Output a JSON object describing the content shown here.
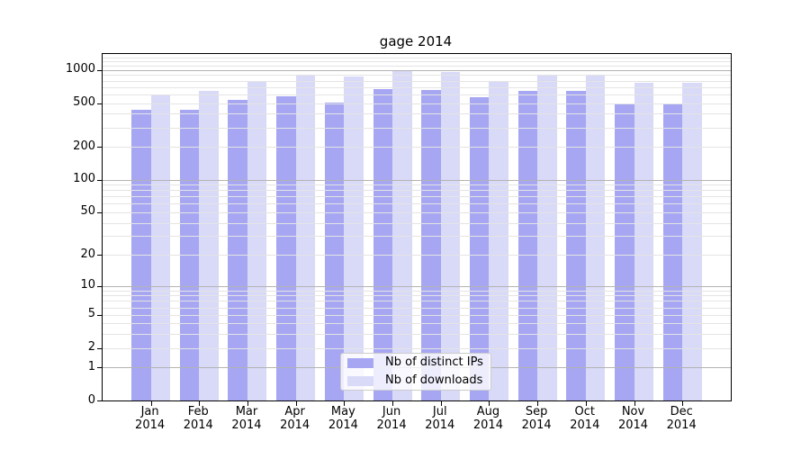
{
  "title": "gage 2014",
  "colors": {
    "distinct_ips_bar": "#a6a6f2",
    "downloads_bar": "#d9d9f8",
    "grid_major": "#b3b3b3",
    "grid_minor": "#e4e4e4",
    "axis_spine": "#000000",
    "legend_border": "#cccccc",
    "text": "#000000"
  },
  "chart_data": {
    "type": "bar",
    "title": "gage 2014",
    "categories": [
      "Jan 2014",
      "Feb 2014",
      "Mar 2014",
      "Apr 2014",
      "May 2014",
      "Jun 2014",
      "Jul 2014",
      "Aug 2014",
      "Sep 2014",
      "Oct 2014",
      "Nov 2014",
      "Dec 2014"
    ],
    "series": [
      {
        "name": "Nb of distinct IPs",
        "color": "#a6a6f2",
        "values": [
          435,
          435,
          530,
          575,
          510,
          675,
          655,
          565,
          650,
          645,
          500,
          485
        ]
      },
      {
        "name": "Nb of downloads",
        "color": "#d9d9f8",
        "values": [
          585,
          650,
          785,
          895,
          875,
          985,
          950,
          790,
          895,
          885,
          770,
          765
        ]
      }
    ],
    "xlabel": "",
    "ylabel": "",
    "yscale": "log1p",
    "yticks": [
      0,
      1,
      2,
      5,
      10,
      20,
      50,
      100,
      200,
      500,
      1000
    ],
    "ylim": [
      0,
      1390
    ],
    "grid": "both",
    "legend_position": "inside lower center"
  }
}
